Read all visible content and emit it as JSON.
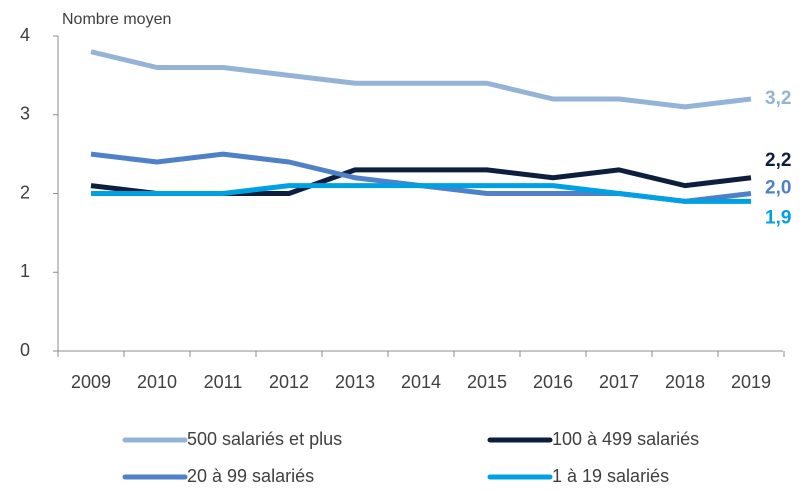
{
  "chart_data": {
    "type": "line",
    "y_label": "Nombre moyen",
    "categories": [
      "2009",
      "2010",
      "2011",
      "2012",
      "2013",
      "2014",
      "2015",
      "2016",
      "2017",
      "2018",
      "2019"
    ],
    "series": [
      {
        "name": "500 salariés et plus",
        "color": "#95b3d7",
        "values": [
          3.8,
          3.6,
          3.6,
          3.5,
          3.4,
          3.4,
          3.4,
          3.2,
          3.2,
          3.1,
          3.2
        ],
        "value_labels": [
          null,
          null,
          null,
          null,
          null,
          null,
          null,
          null,
          null,
          null,
          "3,2"
        ]
      },
      {
        "name": "100 à 499 salariés",
        "color": "#0e1f3d",
        "values": [
          2.1,
          2.0,
          2.0,
          2.0,
          2.3,
          2.3,
          2.3,
          2.2,
          2.3,
          2.1,
          2.2
        ],
        "value_labels": [
          null,
          null,
          null,
          null,
          null,
          null,
          null,
          null,
          null,
          null,
          "2,2"
        ]
      },
      {
        "name": "20 à 99 salariés",
        "color": "#4f81c8",
        "values": [
          2.5,
          2.4,
          2.5,
          2.4,
          2.2,
          2.1,
          2.0,
          2.0,
          2.0,
          1.9,
          2.0
        ],
        "value_labels": [
          null,
          null,
          null,
          null,
          null,
          null,
          null,
          null,
          null,
          null,
          "2,0"
        ]
      },
      {
        "name": "1 à 19 salariés",
        "color": "#00a0e3",
        "values": [
          2.0,
          2.0,
          2.0,
          2.1,
          2.1,
          2.1,
          2.1,
          2.1,
          2.0,
          1.9,
          1.9
        ],
        "value_labels": [
          null,
          null,
          null,
          null,
          null,
          null,
          null,
          null,
          null,
          null,
          "1,9"
        ]
      }
    ],
    "ylim": [
      0,
      4
    ],
    "yticks": [
      0,
      1,
      2,
      3,
      4
    ],
    "grid": false
  }
}
